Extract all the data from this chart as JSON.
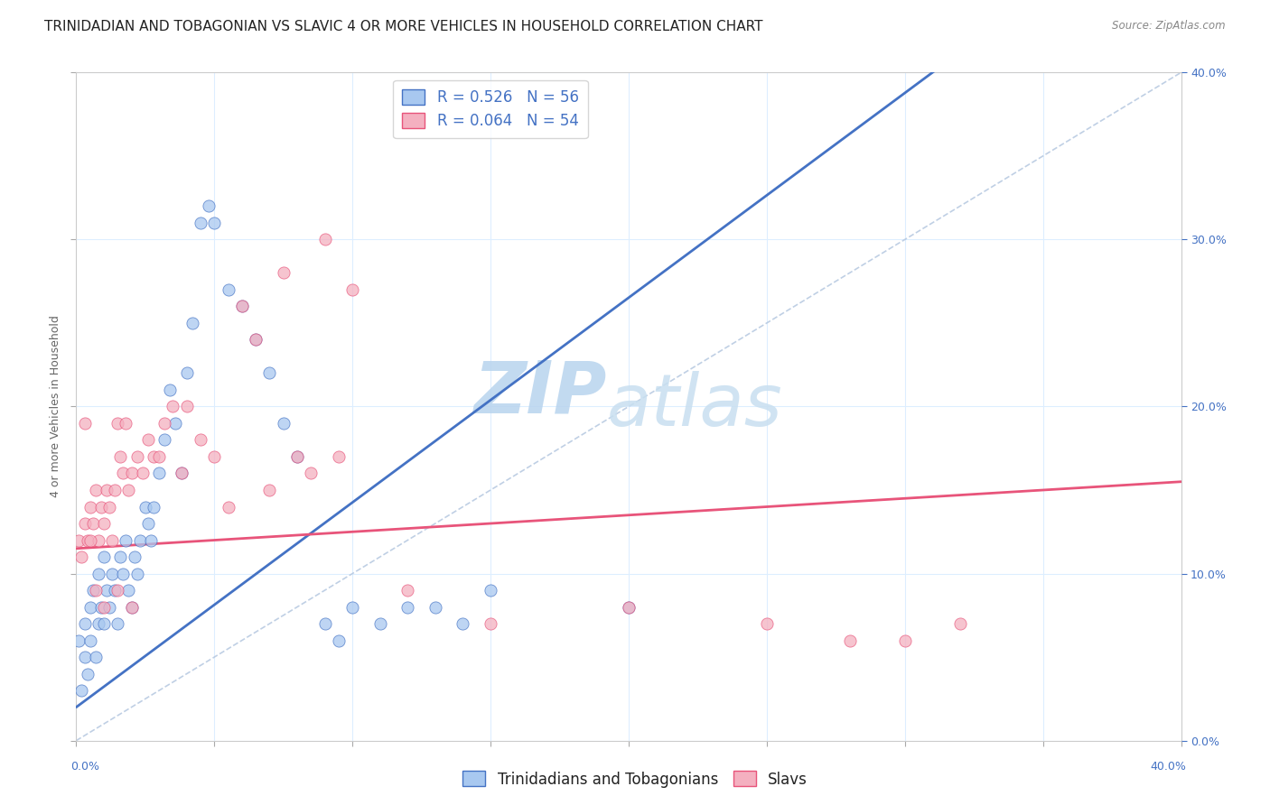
{
  "title": "TRINIDADIAN AND TOBAGONIAN VS SLAVIC 4 OR MORE VEHICLES IN HOUSEHOLD CORRELATION CHART",
  "source": "Source: ZipAtlas.com",
  "ylabel": "4 or more Vehicles in Household",
  "legend_1_label": "Trinidadians and Tobagonians",
  "legend_2_label": "Slavs",
  "legend_1_R": "0.526",
  "legend_1_N": "56",
  "legend_2_R": "0.064",
  "legend_2_N": "54",
  "line1_color": "#4472c4",
  "line2_color": "#e8547a",
  "scatter1_color": "#a8c8f0",
  "scatter2_color": "#f4b0c0",
  "watermark_zip": "ZIP",
  "watermark_atlas": "atlas",
  "watermark_color": "#c8dff0",
  "xlim": [
    0.0,
    0.4
  ],
  "ylim": [
    0.0,
    0.4
  ],
  "line1_x0": 0.0,
  "line1_y0": 0.02,
  "line1_x1": 0.155,
  "line1_y1": 0.21,
  "line2_x0": 0.0,
  "line2_y0": 0.115,
  "line2_x1": 0.4,
  "line2_y1": 0.155,
  "scatter1_x": [
    0.001,
    0.002,
    0.003,
    0.003,
    0.004,
    0.005,
    0.005,
    0.006,
    0.007,
    0.008,
    0.008,
    0.009,
    0.01,
    0.01,
    0.011,
    0.012,
    0.013,
    0.014,
    0.015,
    0.016,
    0.017,
    0.018,
    0.019,
    0.02,
    0.021,
    0.022,
    0.023,
    0.025,
    0.026,
    0.027,
    0.028,
    0.03,
    0.032,
    0.034,
    0.036,
    0.038,
    0.04,
    0.042,
    0.045,
    0.048,
    0.05,
    0.055,
    0.06,
    0.065,
    0.07,
    0.075,
    0.08,
    0.09,
    0.095,
    0.1,
    0.11,
    0.12,
    0.13,
    0.14,
    0.15,
    0.2
  ],
  "scatter1_y": [
    0.06,
    0.03,
    0.05,
    0.07,
    0.04,
    0.08,
    0.06,
    0.09,
    0.05,
    0.07,
    0.1,
    0.08,
    0.07,
    0.11,
    0.09,
    0.08,
    0.1,
    0.09,
    0.07,
    0.11,
    0.1,
    0.12,
    0.09,
    0.08,
    0.11,
    0.1,
    0.12,
    0.14,
    0.13,
    0.12,
    0.14,
    0.16,
    0.18,
    0.21,
    0.19,
    0.16,
    0.22,
    0.25,
    0.31,
    0.32,
    0.31,
    0.27,
    0.26,
    0.24,
    0.22,
    0.19,
    0.17,
    0.07,
    0.06,
    0.08,
    0.07,
    0.08,
    0.08,
    0.07,
    0.09,
    0.08
  ],
  "scatter2_x": [
    0.001,
    0.002,
    0.003,
    0.004,
    0.005,
    0.006,
    0.007,
    0.008,
    0.009,
    0.01,
    0.011,
    0.012,
    0.013,
    0.014,
    0.015,
    0.016,
    0.017,
    0.018,
    0.019,
    0.02,
    0.022,
    0.024,
    0.026,
    0.028,
    0.03,
    0.032,
    0.035,
    0.038,
    0.04,
    0.045,
    0.05,
    0.055,
    0.06,
    0.065,
    0.07,
    0.075,
    0.08,
    0.085,
    0.09,
    0.095,
    0.1,
    0.12,
    0.15,
    0.2,
    0.25,
    0.28,
    0.3,
    0.32,
    0.003,
    0.005,
    0.007,
    0.01,
    0.015,
    0.02
  ],
  "scatter2_y": [
    0.12,
    0.11,
    0.13,
    0.12,
    0.14,
    0.13,
    0.15,
    0.12,
    0.14,
    0.13,
    0.15,
    0.14,
    0.12,
    0.15,
    0.19,
    0.17,
    0.16,
    0.19,
    0.15,
    0.16,
    0.17,
    0.16,
    0.18,
    0.17,
    0.17,
    0.19,
    0.2,
    0.16,
    0.2,
    0.18,
    0.17,
    0.14,
    0.26,
    0.24,
    0.15,
    0.28,
    0.17,
    0.16,
    0.3,
    0.17,
    0.27,
    0.09,
    0.07,
    0.08,
    0.07,
    0.06,
    0.06,
    0.07,
    0.19,
    0.12,
    0.09,
    0.08,
    0.09,
    0.08
  ],
  "background_color": "#ffffff",
  "grid_color": "#ddeeff",
  "title_fontsize": 11,
  "axis_label_fontsize": 9,
  "tick_fontsize": 9,
  "legend_fontsize": 12
}
